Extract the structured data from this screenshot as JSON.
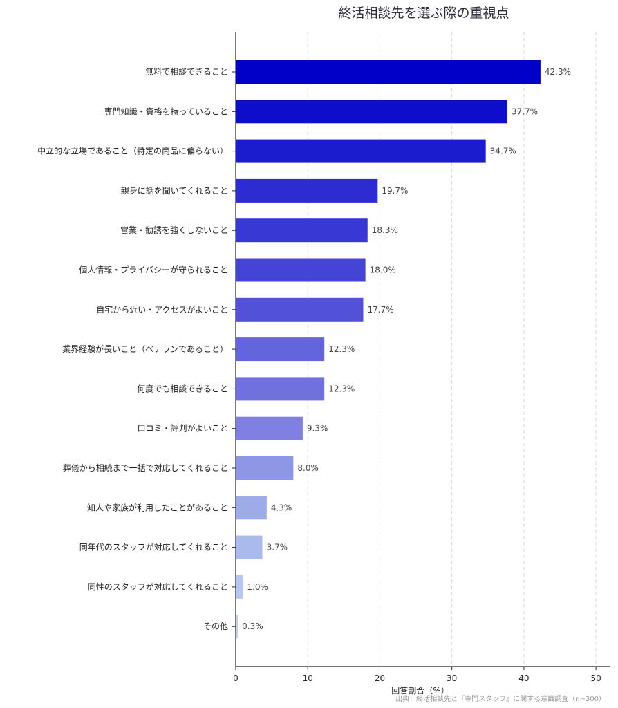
{
  "chart_data": {
    "type": "bar",
    "orientation": "horizontal",
    "title": "終活相談先を選ぶ際の重視点",
    "xlabel": "回答割合（%）",
    "ylabel": "",
    "xlim": [
      0,
      52
    ],
    "xticks": [
      0,
      10,
      20,
      30,
      40,
      50
    ],
    "grid": "vertical dashed",
    "categories": [
      "無料で相談できること",
      "専門知識・資格を持っていること",
      "中立的な立場であること（特定の商品に偏らない）",
      "親身に話を聞いてくれること",
      "営業・勧誘を強くしないこと",
      "個人情報・プライバシーが守られること",
      "自宅から近い・アクセスがよいこと",
      "業界経験が長いこと（ベテランであること）",
      "何度でも相談できること",
      "口コミ・評判がよいこと",
      "葬儀から相続まで一括で対応してくれること",
      "知人や家族が利用したことがあること",
      "同年代のスタッフが対応してくれること",
      "同性のスタッフが対応してくれること",
      "その他"
    ],
    "values": [
      42.3,
      37.7,
      34.7,
      19.7,
      18.3,
      18.0,
      17.7,
      12.3,
      12.3,
      9.3,
      8.0,
      4.3,
      3.7,
      1.0,
      0.3
    ],
    "value_labels": [
      "42.3%",
      "37.7%",
      "34.7%",
      "19.7%",
      "18.3%",
      "18.0%",
      "17.7%",
      "12.3%",
      "12.3%",
      "9.3%",
      "8.0%",
      "4.3%",
      "3.7%",
      "1.0%",
      "0.3%"
    ],
    "colors": [
      "#0000c8",
      "#0d0dcc",
      "#1c1ccf",
      "#2c2cd2",
      "#3838d4",
      "#4444d6",
      "#5252d9",
      "#6464dc",
      "#7070df",
      "#8080e2",
      "#8e96e6",
      "#9eabe9",
      "#aabaed",
      "#b6c6f0",
      "#c0cff2"
    ],
    "source": "出典：終活相談先と『専門スタッフ』に関する意識調査（n=300）"
  }
}
